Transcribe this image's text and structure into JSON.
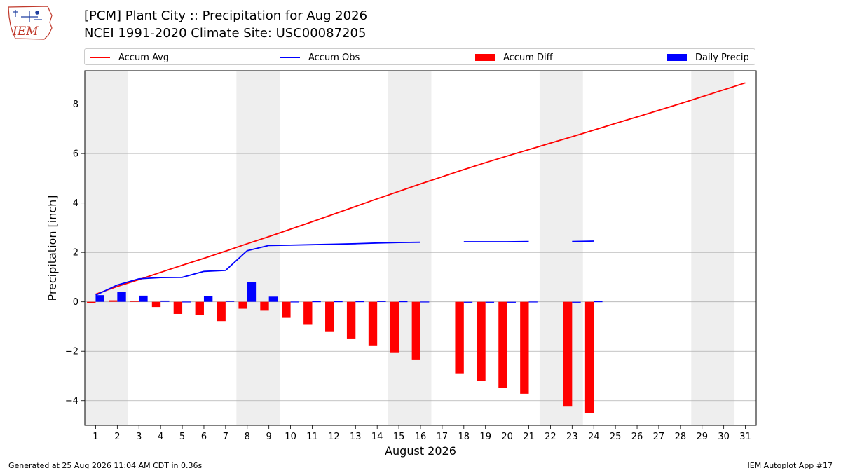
{
  "header": {
    "title_line1": "[PCM] Plant City :: Precipitation for Aug 2026",
    "title_line2": "NCEI 1991-2020 Climate Site: USC00087205"
  },
  "logo": {
    "text": "IEM",
    "icon": "iem-iowa-logo-icon"
  },
  "colors": {
    "avg": "#ff0000",
    "obs": "#0000ff",
    "diff": "#ff0000",
    "daily": "#0000ff",
    "weekend": "#eeeeee",
    "grid": "#b0b0b0"
  },
  "legend": [
    {
      "label": "Accum Avg",
      "kind": "line",
      "color": "#ff0000"
    },
    {
      "label": "Accum Obs",
      "kind": "line",
      "color": "#0000ff"
    },
    {
      "label": "Accum Diff",
      "kind": "patch",
      "color": "#ff0000"
    },
    {
      "label": "Daily Precip",
      "kind": "patch",
      "color": "#0000ff"
    }
  ],
  "chart_data": {
    "type": "bar",
    "xlabel": "August 2026",
    "ylabel": "Precipitation [inch]",
    "xlim": [
      0.5,
      31.5
    ],
    "ylim": [
      -5.0,
      9.35
    ],
    "yticks": [
      -4,
      -2,
      0,
      2,
      4,
      6,
      8
    ],
    "grid": true,
    "legend_placement": "top",
    "weekend_bands": [
      [
        0.5,
        2.5
      ],
      [
        7.5,
        9.5
      ],
      [
        14.5,
        16.5
      ],
      [
        21.5,
        23.5
      ],
      [
        28.5,
        30.5
      ]
    ],
    "days": [
      1,
      2,
      3,
      4,
      5,
      6,
      7,
      8,
      9,
      10,
      11,
      12,
      13,
      14,
      15,
      16,
      17,
      18,
      19,
      20,
      21,
      22,
      23,
      24,
      25,
      26,
      27,
      28,
      29,
      30,
      31
    ],
    "series": [
      {
        "name": "Accum Avg",
        "kind": "line",
        "values": [
          0.31,
          0.62,
          0.9,
          1.19,
          1.48,
          1.76,
          2.05,
          2.35,
          2.64,
          2.94,
          3.24,
          3.55,
          3.86,
          4.17,
          4.47,
          4.77,
          5.06,
          5.35,
          5.63,
          5.9,
          6.16,
          6.42,
          6.68,
          6.95,
          7.22,
          7.48,
          7.75,
          8.02,
          8.3,
          8.58,
          8.86
        ]
      },
      {
        "name": "Accum Obs",
        "kind": "line",
        "values": [
          0.27,
          0.68,
          0.93,
          0.98,
          0.99,
          1.23,
          1.27,
          2.07,
          2.28,
          2.29,
          2.31,
          2.33,
          2.35,
          2.38,
          2.4,
          2.41,
          null,
          2.43,
          2.43,
          2.43,
          2.44,
          null,
          2.44,
          2.46,
          null,
          null,
          null,
          null,
          null,
          null,
          null
        ]
      },
      {
        "name": "Accum Diff",
        "kind": "bar",
        "values": [
          -0.04,
          0.06,
          0.03,
          -0.21,
          -0.49,
          -0.53,
          -0.78,
          -0.28,
          -0.36,
          -0.65,
          -0.93,
          -1.22,
          -1.51,
          -1.79,
          -2.07,
          -2.36,
          null,
          -2.92,
          -3.2,
          -3.47,
          -3.72,
          null,
          -4.24,
          -4.49,
          null,
          null,
          null,
          null,
          null,
          null,
          null
        ]
      },
      {
        "name": "Daily Precip",
        "kind": "bar",
        "values": [
          0.27,
          0.41,
          0.25,
          0.05,
          0.01,
          0.24,
          0.04,
          0.8,
          0.21,
          0.01,
          0.02,
          0.02,
          0.02,
          0.03,
          0.02,
          0.01,
          null,
          0.0,
          0.0,
          0.0,
          0.01,
          null,
          0.0,
          0.02,
          null,
          null,
          null,
          null,
          null,
          null,
          null
        ]
      }
    ]
  },
  "footer": {
    "left": "Generated at 25 Aug 2026 11:04 AM CDT in 0.36s",
    "right": "IEM Autoplot App #17"
  }
}
